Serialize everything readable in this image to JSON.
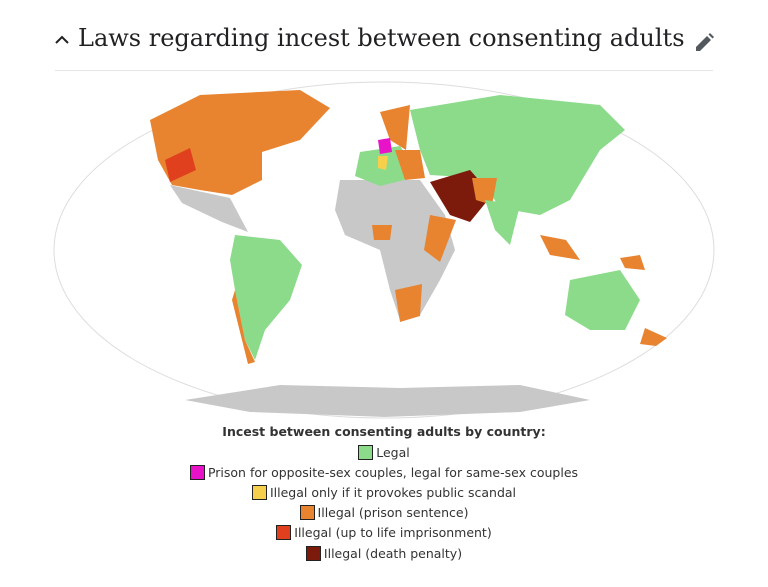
{
  "header": {
    "title": "Laws regarding incest between consenting adults"
  },
  "map": {
    "legend": {
      "title": "Incest between consenting adults by country:",
      "items": [
        {
          "label": "Legal",
          "color": "#8bdb8b"
        },
        {
          "label": "Prison for opposite-sex couples, legal for same-sex couples",
          "color": "#e812c8"
        },
        {
          "label": "Illegal only if it provokes public scandal",
          "color": "#f6d04d"
        },
        {
          "label": "Illegal (prison sentence)",
          "color": "#e8832f"
        },
        {
          "label": "Illegal (up to life imprisonment)",
          "color": "#e0401e"
        },
        {
          "label": "Illegal (death penalty)",
          "color": "#7c1a0c"
        }
      ]
    }
  }
}
